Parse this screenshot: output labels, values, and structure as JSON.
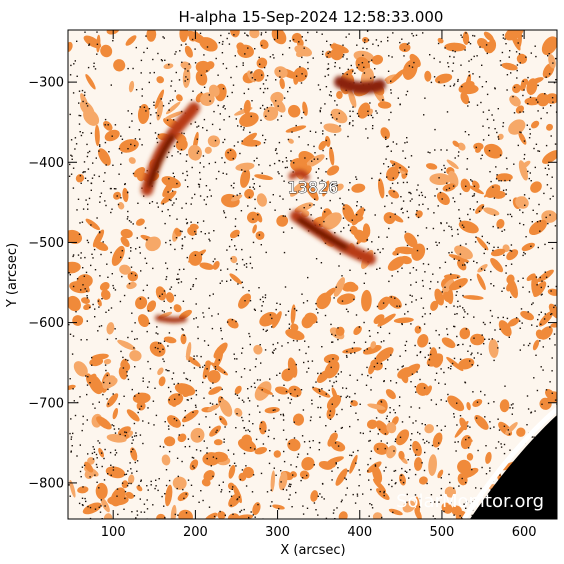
{
  "title": "H-alpha 15-Sep-2024 12:58:33.000",
  "x_axis": {
    "label": "X (arcsec)",
    "range": [
      45,
      640
    ],
    "ticks": [
      100,
      200,
      300,
      400,
      500,
      600
    ]
  },
  "y_axis": {
    "label": "Y (arcsec)",
    "range": [
      -845,
      -235
    ],
    "ticks": [
      -300,
      -400,
      -500,
      -600,
      -700,
      -800
    ]
  },
  "region_label": "13826",
  "watermark": "SolarMonitor.org",
  "colors": {
    "background": "#fdf6ee",
    "orange": "#f08a3a",
    "dark_orange": "#c0451a",
    "deep_red": "#7a1a08",
    "speckle": "#1a120c",
    "off_disk": "#000000"
  }
}
